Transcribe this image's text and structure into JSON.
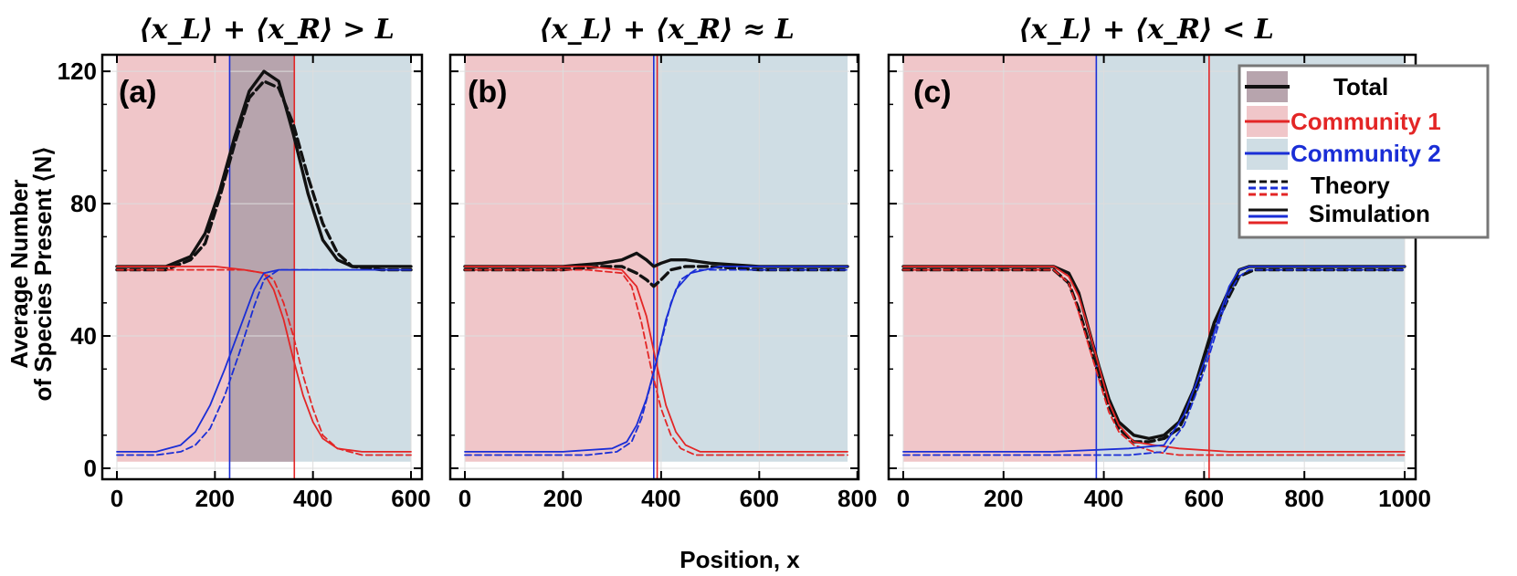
{
  "figure": {
    "xlabel": "Position, x",
    "ylabel_line1": "Average Number",
    "ylabel_line2": "of Species Present ⟨N⟩"
  },
  "colors": {
    "community1": "#e32626",
    "community2": "#1a2ed6",
    "total": "#111111",
    "region1": "#f0c6c9",
    "region2": "#cfdde4",
    "overlap": "#b7a4ad"
  },
  "legend": {
    "total": "Total",
    "community1": "Community 1",
    "community2": "Community 2",
    "theory": "Theory",
    "simulation": "Simulation"
  },
  "chart_data": [
    {
      "type": "line",
      "panel": "(a)",
      "title": "⟨x_L⟩ + ⟨x_R⟩ > L",
      "xlim": [
        0,
        600
      ],
      "ylim": [
        0,
        125
      ],
      "xticks": [
        0,
        200,
        400,
        600
      ],
      "yticks": [
        0,
        40,
        80,
        120
      ],
      "x_left": 230,
      "x_right": 362,
      "overlap_region": [
        230,
        362
      ],
      "series": [
        {
          "name": "Total",
          "style": "simulation",
          "x": [
            0,
            100,
            150,
            180,
            210,
            240,
            270,
            300,
            330,
            360,
            390,
            420,
            450,
            480,
            540,
            600
          ],
          "y": [
            61,
            61,
            64,
            71,
            84,
            100,
            114,
            120,
            117,
            101,
            83,
            69,
            63,
            61,
            61,
            61
          ]
        },
        {
          "name": "Total",
          "style": "theory",
          "x": [
            0,
            100,
            150,
            180,
            210,
            240,
            270,
            300,
            330,
            360,
            390,
            420,
            450,
            480,
            540,
            600
          ],
          "y": [
            60,
            60,
            63,
            68,
            82,
            98,
            112,
            117,
            115,
            104,
            88,
            74,
            65,
            61,
            60,
            60
          ]
        },
        {
          "name": "Community 1",
          "style": "simulation",
          "x": [
            0,
            200,
            260,
            300,
            320,
            340,
            360,
            380,
            400,
            420,
            450,
            500,
            600
          ],
          "y": [
            61,
            61,
            60,
            59,
            54,
            45,
            33,
            22,
            14,
            9,
            6,
            5,
            5
          ]
        },
        {
          "name": "Community 1",
          "style": "theory",
          "x": [
            0,
            200,
            260,
            300,
            320,
            340,
            360,
            380,
            400,
            420,
            450,
            500,
            600
          ],
          "y": [
            60,
            60,
            60,
            59,
            57,
            50,
            40,
            28,
            18,
            10,
            6,
            4,
            4
          ]
        },
        {
          "name": "Community 2",
          "style": "simulation",
          "x": [
            0,
            80,
            130,
            160,
            190,
            220,
            250,
            280,
            300,
            330,
            380,
            450,
            600
          ],
          "y": [
            5,
            5,
            7,
            11,
            19,
            30,
            42,
            54,
            59,
            60,
            60,
            60,
            60
          ]
        },
        {
          "name": "Community 2",
          "style": "theory",
          "x": [
            0,
            80,
            130,
            160,
            190,
            220,
            250,
            280,
            300,
            330,
            380,
            450,
            600
          ],
          "y": [
            4,
            4,
            5,
            7,
            12,
            22,
            35,
            49,
            57,
            60,
            60,
            60,
            60
          ]
        }
      ]
    },
    {
      "type": "line",
      "panel": "(b)",
      "title": "⟨x_L⟩ + ⟨x_R⟩ ≈ L",
      "xlim": [
        0,
        780
      ],
      "ylim": [
        0,
        125
      ],
      "xticks": [
        0,
        200,
        400,
        600,
        800
      ],
      "yticks": [
        0,
        40,
        80,
        120
      ],
      "x_left": 385,
      "x_right": 392,
      "series": [
        {
          "name": "Total",
          "style": "simulation",
          "x": [
            0,
            200,
            280,
            320,
            350,
            370,
            385,
            400,
            420,
            450,
            500,
            600,
            780
          ],
          "y": [
            61,
            61,
            62,
            63,
            65,
            63,
            61,
            62,
            63,
            63,
            62,
            61,
            61
          ]
        },
        {
          "name": "Total",
          "style": "theory",
          "x": [
            0,
            200,
            280,
            320,
            350,
            370,
            385,
            400,
            420,
            450,
            500,
            600,
            780
          ],
          "y": [
            60,
            60,
            61,
            61,
            59,
            57,
            55,
            57,
            60,
            61,
            61,
            60,
            60
          ]
        },
        {
          "name": "Community 1",
          "style": "simulation",
          "x": [
            0,
            250,
            320,
            350,
            370,
            390,
            410,
            430,
            450,
            480,
            550,
            780
          ],
          "y": [
            61,
            61,
            60,
            55,
            46,
            32,
            19,
            11,
            7,
            5,
            5,
            5
          ]
        },
        {
          "name": "Community 1",
          "style": "theory",
          "x": [
            0,
            250,
            320,
            340,
            360,
            380,
            400,
            420,
            440,
            470,
            550,
            780
          ],
          "y": [
            60,
            60,
            59,
            55,
            44,
            30,
            18,
            10,
            6,
            4,
            4,
            4
          ]
        },
        {
          "name": "Community 2",
          "style": "simulation",
          "x": [
            0,
            200,
            300,
            330,
            350,
            370,
            390,
            410,
            430,
            460,
            520,
            780
          ],
          "y": [
            5,
            5,
            6,
            8,
            13,
            21,
            32,
            45,
            54,
            59,
            61,
            61
          ]
        },
        {
          "name": "Community 2",
          "style": "theory",
          "x": [
            0,
            250,
            310,
            340,
            360,
            380,
            400,
            420,
            440,
            470,
            530,
            780
          ],
          "y": [
            4,
            4,
            5,
            8,
            15,
            26,
            38,
            50,
            57,
            60,
            60,
            60
          ]
        }
      ]
    },
    {
      "type": "line",
      "panel": "(c)",
      "title": "⟨x_L⟩ + ⟨x_R⟩ < L",
      "xlim": [
        0,
        1000
      ],
      "ylim": [
        0,
        125
      ],
      "xticks": [
        0,
        200,
        400,
        600,
        800,
        1000
      ],
      "yticks": [
        0,
        40,
        80,
        120
      ],
      "x_left": 385,
      "x_right": 610,
      "series": [
        {
          "name": "Total",
          "style": "simulation",
          "x": [
            0,
            300,
            330,
            350,
            370,
            390,
            410,
            430,
            460,
            490,
            520,
            550,
            580,
            600,
            620,
            650,
            670,
            690,
            720,
            1000
          ],
          "y": [
            61,
            61,
            59,
            53,
            42,
            31,
            21,
            14,
            10,
            9,
            10,
            14,
            24,
            34,
            44,
            54,
            60,
            61,
            61,
            61
          ]
        },
        {
          "name": "Total",
          "style": "theory",
          "x": [
            0,
            300,
            330,
            350,
            370,
            390,
            410,
            430,
            460,
            490,
            520,
            550,
            580,
            600,
            620,
            650,
            670,
            700,
            1000
          ],
          "y": [
            60,
            60,
            56,
            48,
            38,
            28,
            19,
            12,
            8,
            8,
            9,
            12,
            22,
            32,
            42,
            52,
            58,
            60,
            60
          ]
        },
        {
          "name": "Community 1",
          "style": "simulation",
          "x": [
            0,
            300,
            330,
            350,
            370,
            390,
            410,
            430,
            460,
            500,
            550,
            650,
            1000
          ],
          "y": [
            61,
            61,
            58,
            52,
            42,
            31,
            20,
            13,
            8,
            7,
            6,
            5,
            5
          ]
        },
        {
          "name": "Community 1",
          "style": "theory",
          "x": [
            0,
            300,
            330,
            350,
            370,
            390,
            410,
            430,
            460,
            500,
            550,
            650,
            1000
          ],
          "y": [
            60,
            60,
            56,
            47,
            37,
            27,
            17,
            11,
            7,
            5,
            4,
            4,
            4
          ]
        },
        {
          "name": "Community 2",
          "style": "simulation",
          "x": [
            0,
            300,
            450,
            520,
            560,
            590,
            610,
            630,
            650,
            670,
            690,
            1000
          ],
          "y": [
            5,
            5,
            6,
            7,
            16,
            28,
            36,
            46,
            55,
            60,
            61,
            61
          ]
        },
        {
          "name": "Community 2",
          "style": "theory",
          "x": [
            0,
            300,
            450,
            520,
            560,
            590,
            610,
            630,
            650,
            670,
            690,
            1000
          ],
          "y": [
            4,
            4,
            4,
            5,
            13,
            25,
            34,
            44,
            53,
            58,
            60,
            60
          ]
        }
      ]
    }
  ]
}
